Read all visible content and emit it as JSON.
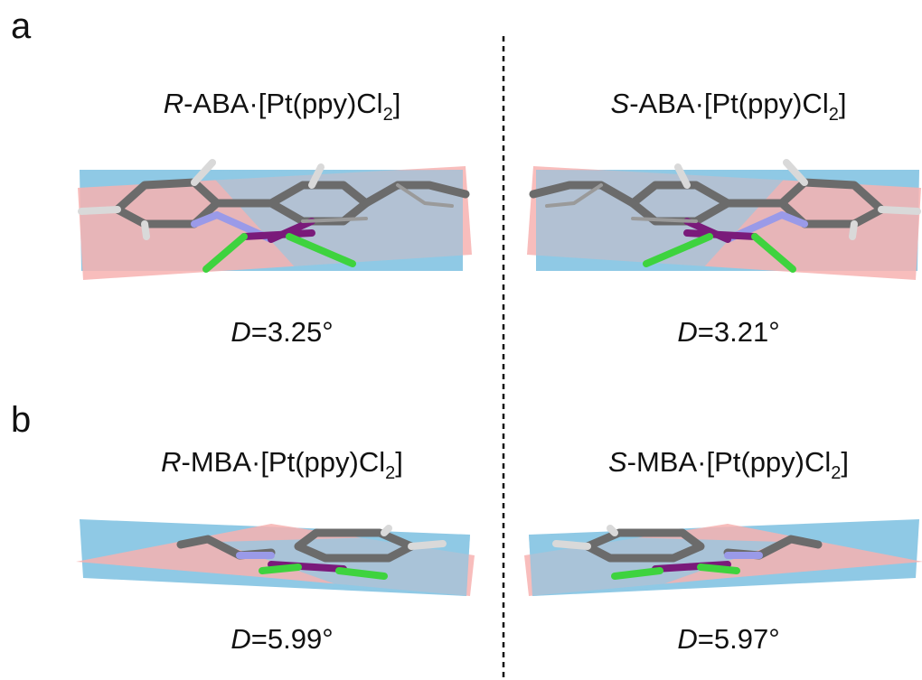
{
  "panels": [
    {
      "label": "a",
      "left": {
        "title": {
          "italic": "R",
          "text": "-ABA·[Pt(ppy)Cl",
          "subscript": "2",
          "close": "]"
        },
        "dihedral": {
          "variable": "D",
          "value": "=3.25°"
        }
      },
      "right": {
        "title": {
          "italic": "S",
          "text": "-ABA·[Pt(ppy)Cl",
          "subscript": "2",
          "close": "]"
        },
        "dihedral": {
          "variable": "D",
          "value": "=3.21°"
        }
      }
    },
    {
      "label": "b",
      "left": {
        "title": {
          "italic": "R",
          "text": "-MBA·[Pt(ppy)Cl",
          "subscript": "2",
          "close": "]"
        },
        "dihedral": {
          "variable": "D",
          "value": "=5.99°"
        }
      },
      "right": {
        "title": {
          "italic": "S",
          "text": "-MBA·[Pt(ppy)Cl",
          "subscript": "2",
          "close": "]"
        },
        "dihedral": {
          "variable": "D",
          "value": "=5.97°"
        }
      }
    }
  ]
}
